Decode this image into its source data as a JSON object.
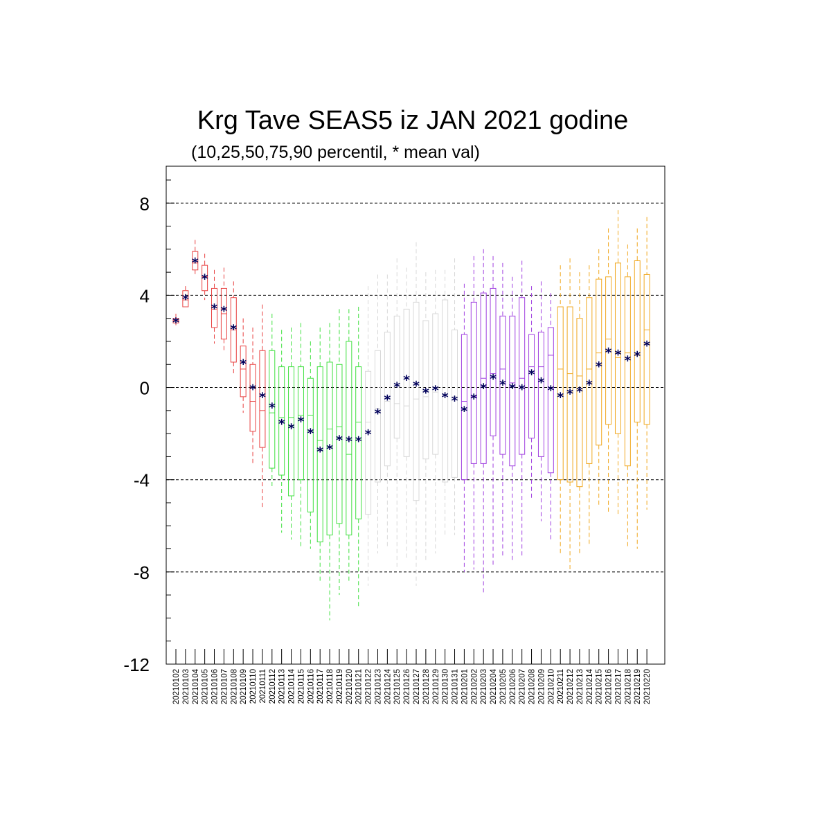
{
  "chart_data": {
    "type": "boxplot",
    "title": "Krg Tave SEAS5 iz JAN 2021 godine",
    "subtitle": "(10,25,50,75,90 percentil, * mean val)",
    "ylim": [
      -12,
      9.6
    ],
    "yticks": [
      {
        "value": 8,
        "label": "8"
      },
      {
        "value": 4,
        "label": "4"
      },
      {
        "value": 0,
        "label": "0"
      },
      {
        "value": -4,
        "label": "-4"
      },
      {
        "value": -8,
        "label": "-8"
      },
      {
        "value": -12,
        "label": "-12"
      }
    ],
    "gridlines": [
      8,
      4,
      0,
      -4,
      -8
    ],
    "month_colors": {
      "jan_early": "#e84040",
      "jan_mid": "#40e040",
      "jan_late": "#d8d8d8",
      "feb_early": "#a040e0",
      "feb_late": "#f0a820",
      "mean_marker": "#00005a"
    },
    "categories": [
      "20210102",
      "20210103",
      "20210104",
      "20210105",
      "20210106",
      "20210107",
      "20210108",
      "20210109",
      "20210110",
      "20210111",
      "20210112",
      "20210113",
      "20210114",
      "20210115",
      "20210116",
      "20210117",
      "20210118",
      "20210119",
      "20210120",
      "20210121",
      "20210122",
      "20210123",
      "20210124",
      "20210125",
      "20210126",
      "20210127",
      "20210128",
      "20210129",
      "20210130",
      "20210131",
      "20210201",
      "20210202",
      "20210203",
      "20210204",
      "20210205",
      "20210206",
      "20210207",
      "20210208",
      "20210209",
      "20210210",
      "20210211",
      "20210212",
      "20210213",
      "20210214",
      "20210215",
      "20210216",
      "20210217",
      "20210218",
      "20210219",
      "20210220"
    ],
    "groups": [
      "jan_early",
      "jan_early",
      "jan_early",
      "jan_early",
      "jan_early",
      "jan_early",
      "jan_early",
      "jan_early",
      "jan_early",
      "jan_early",
      "jan_mid",
      "jan_mid",
      "jan_mid",
      "jan_mid",
      "jan_mid",
      "jan_mid",
      "jan_mid",
      "jan_mid",
      "jan_mid",
      "jan_mid",
      "jan_late",
      "jan_late",
      "jan_late",
      "jan_late",
      "jan_late",
      "jan_late",
      "jan_late",
      "jan_late",
      "jan_late",
      "jan_late",
      "feb_early",
      "feb_early",
      "feb_early",
      "feb_early",
      "feb_early",
      "feb_early",
      "feb_early",
      "feb_early",
      "feb_early",
      "feb_early",
      "feb_late",
      "feb_late",
      "feb_late",
      "feb_late",
      "feb_late",
      "feb_late",
      "feb_late",
      "feb_late",
      "feb_late",
      "feb_late"
    ],
    "series": [
      {
        "name": "p10",
        "values": [
          2.7,
          3.5,
          4.9,
          3.8,
          1.9,
          1.5,
          0.5,
          -1.1,
          -3.3,
          -5.3,
          -4.4,
          -6.3,
          -6.6,
          -6.9,
          -7.0,
          -8.5,
          -10.1,
          -9.0,
          -8.5,
          -9.6,
          -8.6,
          -7.2,
          -7.0,
          -7.8,
          -7.5,
          -8.6,
          -7.6,
          -7.2,
          -6.4,
          -6.4,
          -8.0,
          -7.9,
          -9.0,
          -7.7,
          -7.4,
          -7.6,
          -7.4,
          -4.9,
          -5.8,
          -6.6,
          -7.3,
          -8.0,
          -7.3,
          -6.9,
          -5.2,
          -5.5,
          -5.6,
          -6.9,
          -7.0,
          -5.3
        ]
      },
      {
        "name": "p25",
        "values": [
          2.8,
          3.5,
          5.1,
          4.2,
          2.6,
          2.1,
          1.1,
          -0.4,
          -1.9,
          -2.6,
          -3.5,
          -3.8,
          -4.7,
          -4.0,
          -5.4,
          -6.7,
          -6.4,
          -5.9,
          -6.4,
          -5.7,
          -5.5,
          -4.1,
          -3.4,
          -2.2,
          -3.0,
          -4.9,
          -3.1,
          -2.9,
          -4.1,
          -3.9,
          -4.0,
          -3.3,
          -3.3,
          -2.1,
          -2.9,
          -3.4,
          -2.9,
          -2.2,
          -3.0,
          -3.7,
          -4.0,
          -4.1,
          -4.3,
          -3.3,
          -2.5,
          -1.6,
          -2.0,
          -3.4,
          -1.5,
          -1.6
        ]
      },
      {
        "name": "p50",
        "values": [
          2.9,
          3.8,
          5.4,
          4.8,
          3.4,
          3.2,
          2.5,
          0.8,
          -0.6,
          -1.0,
          -1.1,
          -1.3,
          -1.3,
          -1.2,
          -1.2,
          -2.3,
          -1.8,
          -1.7,
          -2.9,
          -1.5,
          -1.5,
          -0.9,
          -0.6,
          -0.7,
          -0.8,
          -0.5,
          -0.4,
          -0.2,
          -0.3,
          -0.4,
          -0.6,
          -0.4,
          0.4,
          0.6,
          0.8,
          0.2,
          0.4,
          0.9,
          0.9,
          1.4,
          0.8,
          0.6,
          0.5,
          0.8,
          1.5,
          2.1,
          1.3,
          1.5,
          1.4,
          2.5
        ]
      },
      {
        "name": "p75",
        "values": [
          3.0,
          4.2,
          5.9,
          5.3,
          4.3,
          4.3,
          3.9,
          1.8,
          1.0,
          1.6,
          1.6,
          0.9,
          0.9,
          0.9,
          0.4,
          0.9,
          1.1,
          1.0,
          2.0,
          0.9,
          0.7,
          1.6,
          2.4,
          3.1,
          3.4,
          3.7,
          2.9,
          3.2,
          3.8,
          2.5,
          2.3,
          3.7,
          4.1,
          4.3,
          3.1,
          3.1,
          3.9,
          2.3,
          2.4,
          2.6,
          3.5,
          3.5,
          3.0,
          3.9,
          4.7,
          4.8,
          5.4,
          4.8,
          5.5,
          4.9
        ]
      },
      {
        "name": "p90",
        "values": [
          3.2,
          4.4,
          6.4,
          5.8,
          5.1,
          5.2,
          4.6,
          3.0,
          2.6,
          3.6,
          3.2,
          2.5,
          2.6,
          2.8,
          2.0,
          2.6,
          2.8,
          3.4,
          3.4,
          3.5,
          4.4,
          4.9,
          4.9,
          5.6,
          5.2,
          6.3,
          5.0,
          5.1,
          5.1,
          5.6,
          4.5,
          5.7,
          6.0,
          5.7,
          5.4,
          4.8,
          5.5,
          4.4,
          4.6,
          4.1,
          5.3,
          5.6,
          5.0,
          5.3,
          6.0,
          6.9,
          7.7,
          6.2,
          6.9,
          7.4
        ]
      },
      {
        "name": "mean",
        "values": [
          2.9,
          3.9,
          5.5,
          4.8,
          3.5,
          3.4,
          2.6,
          1.1,
          0.0,
          -0.35,
          -0.8,
          -1.5,
          -1.7,
          -1.4,
          -1.9,
          -2.7,
          -2.6,
          -2.2,
          -2.25,
          -2.25,
          -1.95,
          -1.05,
          -0.45,
          0.1,
          0.4,
          0.15,
          -0.15,
          -0.05,
          -0.35,
          -0.5,
          -0.95,
          -0.4,
          0.05,
          0.45,
          0.2,
          0.05,
          0.0,
          0.65,
          0.3,
          -0.05,
          -0.35,
          -0.2,
          -0.1,
          0.2,
          1.0,
          1.6,
          1.5,
          1.25,
          1.45,
          1.9
        ]
      }
    ]
  }
}
